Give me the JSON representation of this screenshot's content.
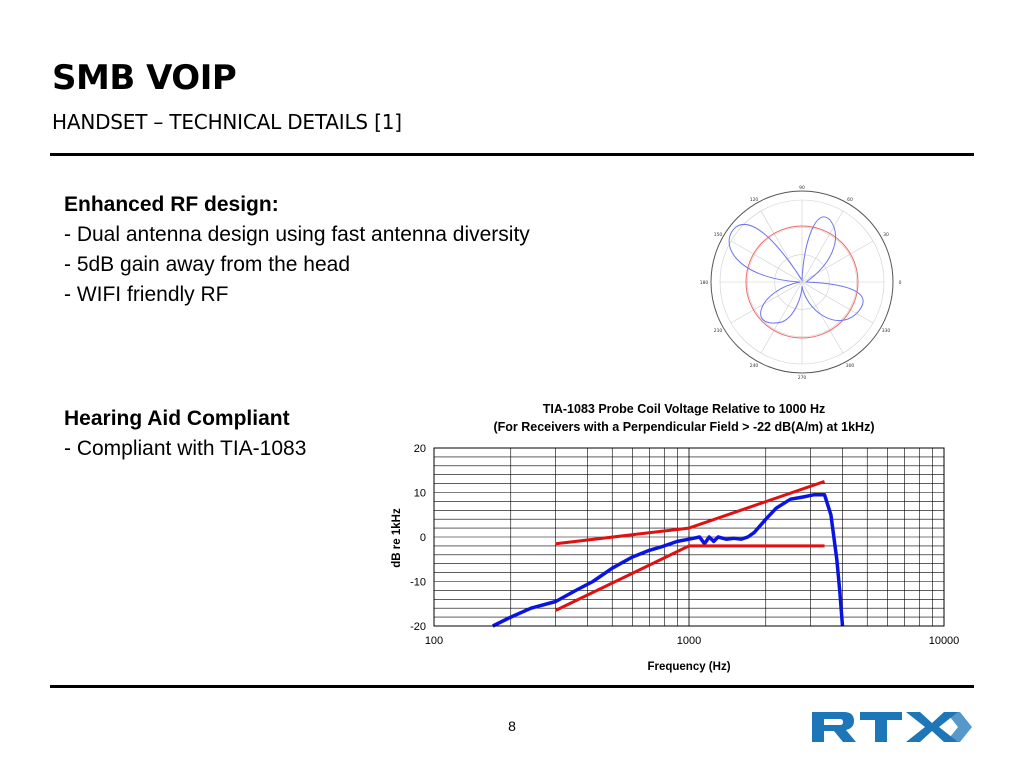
{
  "slide": {
    "title": "SMB VOIP",
    "subtitle": "HANDSET – TECHNICAL DETAILS [1]",
    "page_number": "8",
    "logo_text": "RTX"
  },
  "rf_section": {
    "heading": "Enhanced RF design:",
    "bullets": [
      "- Dual antenna design using fast antenna diversity",
      "- 5dB gain away from the head",
      "- WIFI friendly RF"
    ]
  },
  "hac_section": {
    "heading": "Hearing Aid Compliant",
    "bullets": [
      "- Compliant with TIA-1083"
    ]
  },
  "polar_labels": [
    "90",
    "60",
    "30",
    "0",
    "330",
    "300",
    "270",
    "240",
    "210",
    "180",
    "150",
    "120"
  ],
  "colors": {
    "curve": "#0a14e0",
    "limit": "#e01010",
    "polar_pattern": "#6f74ef",
    "polar_reference": "#f06a6a",
    "logo": "#1d76b8"
  },
  "chart_data": {
    "type": "line",
    "title": "TIA-1083 Probe Coil Voltage Relative to 1000 Hz",
    "subtitle": "(For Receivers with a Perpendicular Field > -22 dB(A/m) at 1kHz)",
    "xlabel": "Frequency (Hz)",
    "ylabel": "dB re 1kHz",
    "x_scale": "log",
    "xlim": [
      100,
      10000
    ],
    "ylim": [
      -20,
      20
    ],
    "x_ticks": [
      100,
      1000,
      10000
    ],
    "y_ticks": [
      20,
      10,
      0,
      -10,
      -20
    ],
    "grid": true,
    "series": [
      {
        "role": "response",
        "color": "#0a14e0",
        "x": [
          170,
          200,
          240,
          300,
          360,
          420,
          500,
          600,
          700,
          800,
          900,
          1000,
          1100,
          1150,
          1200,
          1250,
          1300,
          1400,
          1500,
          1600,
          1700,
          1800,
          2000,
          2200,
          2500,
          2800,
          3100,
          3400,
          3600,
          3800,
          3900,
          4000
        ],
        "y": [
          -20,
          -18,
          -16,
          -14.5,
          -12,
          -10,
          -7,
          -4.5,
          -3,
          -2,
          -1,
          -0.5,
          0,
          -1.5,
          0,
          -1,
          0,
          -0.5,
          -0.3,
          -0.5,
          0,
          1,
          4,
          6.5,
          8.5,
          9,
          9.5,
          9.5,
          5,
          -5,
          -12,
          -20
        ]
      },
      {
        "role": "upper limit",
        "color": "#e01010",
        "x": [
          300,
          1000,
          3400
        ],
        "y": [
          -1.5,
          2,
          12.5
        ]
      },
      {
        "role": "lower limit",
        "color": "#e01010",
        "x": [
          300,
          1000,
          3400
        ],
        "y": [
          -16.5,
          -2,
          -2
        ]
      }
    ]
  }
}
